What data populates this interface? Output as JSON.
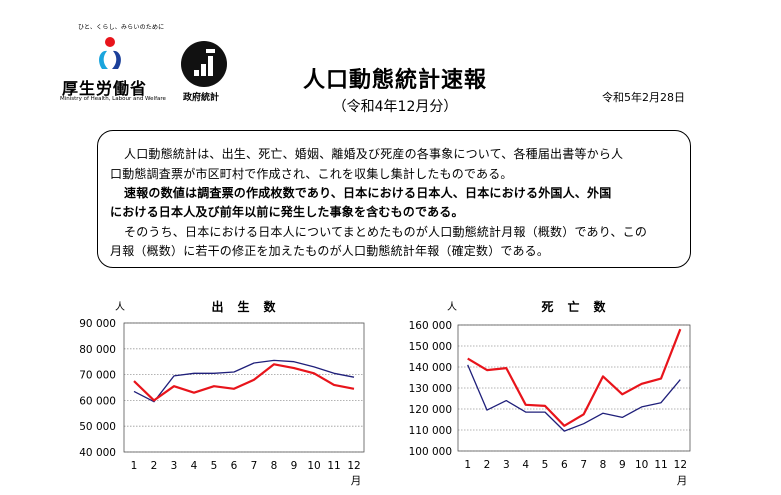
{
  "header": {
    "mhlw_tagline": "ひと、くらし、みらいのために",
    "mhlw_name": "厚生労働省",
    "mhlw_en": "Ministry of Health, Labour and Welfare",
    "stat_name": "政府統計",
    "title": "人口動態統計速報",
    "subtitle": "（令和4年12月分）",
    "date": "令和5年2月28日"
  },
  "notice": {
    "lines": [
      "人口動態統計は、出生、死亡、婚姻、離婚及び死産の各事象について、各種届出書等から人",
      "口動態調査票が市区町村で作成され、これを収集し集計したものである。",
      "速報の数値は調査票の作成枚数であり、日本における日本人、日本における外国人、外国",
      "における日本人及び前年以前に発生した事象を含むものである。",
      "そのうち、日本における日本人についてまとめたものが人口動態統計月報（概数）であり、この",
      "月報（概数）に若干の修正を加えたものが人口動態統計年報（確定数）である。"
    ]
  },
  "colors": {
    "current": "#e8141b",
    "previous": "#1f1f7a"
  },
  "chart_data": [
    {
      "type": "line",
      "title": "出　生　数",
      "unit_label": "人",
      "xlabel": "月",
      "categories": [
        "1",
        "2",
        "3",
        "4",
        "5",
        "6",
        "7",
        "8",
        "9",
        "10",
        "11",
        "12"
      ],
      "yticks": [
        "90 000",
        "80 000",
        "70 000",
        "60 000",
        "50 000",
        "40 000"
      ],
      "ylim": [
        40000,
        90000
      ],
      "grid": true,
      "series": [
        {
          "values": [
            67500,
            60000,
            65500,
            63000,
            65500,
            64500,
            68000,
            74000,
            72500,
            70500,
            66000,
            64500
          ]
        },
        {
          "values": [
            63500,
            59500,
            69500,
            70500,
            70500,
            71000,
            74500,
            75500,
            75000,
            73000,
            70500,
            69000
          ]
        }
      ]
    },
    {
      "type": "line",
      "title": "死　亡　数",
      "unit_label": "人",
      "xlabel": "月",
      "categories": [
        "1",
        "2",
        "3",
        "4",
        "5",
        "6",
        "7",
        "8",
        "9",
        "10",
        "11",
        "12"
      ],
      "yticks": [
        "160 000",
        "150 000",
        "140 000",
        "130 000",
        "120 000",
        "110 000",
        "100 000"
      ],
      "ylim": [
        100000,
        160000
      ],
      "grid": true,
      "series": [
        {
          "values": [
            144000,
            138500,
            139500,
            122000,
            121500,
            112000,
            117500,
            135500,
            127000,
            132000,
            134500,
            158000
          ]
        },
        {
          "values": [
            141000,
            119500,
            124000,
            118500,
            118500,
            109500,
            113000,
            118000,
            116000,
            121000,
            123000,
            134000
          ]
        }
      ]
    }
  ]
}
